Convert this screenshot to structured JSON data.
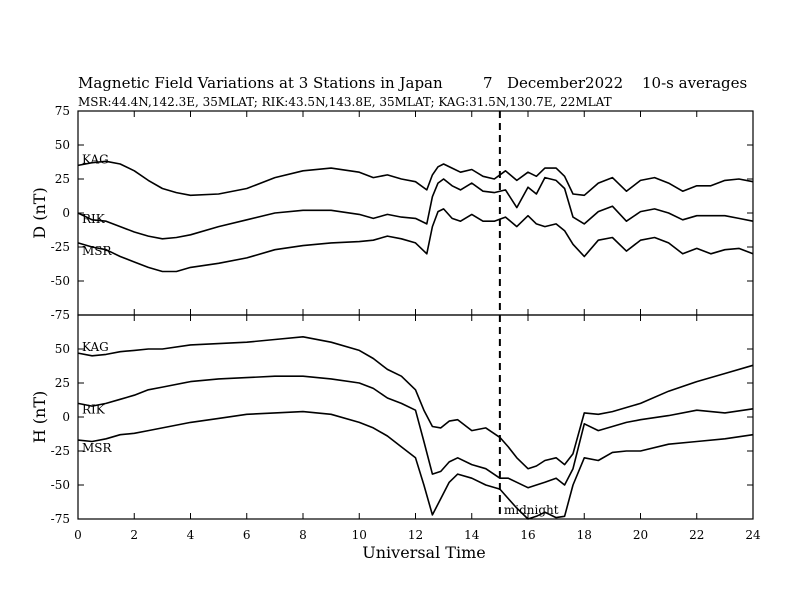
{
  "header": {
    "title": "Magnetic Field Variations at 3 Stations in Japan",
    "day": "7",
    "month_year": "December2022",
    "averaging": "10-s averages",
    "stations_line": "MSR:44.4N,142.3E, 35MLAT;  RIK:43.5N,143.8E, 35MLAT;  KAG:31.5N,130.7E, 22MLAT"
  },
  "chart_data": [
    {
      "type": "line",
      "panel": "top",
      "ylabel": "D (nT)",
      "xlabel": "",
      "xlim": [
        0,
        24
      ],
      "ylim": [
        -75,
        75
      ],
      "xticks": [
        0,
        2,
        4,
        6,
        8,
        10,
        12,
        14,
        16,
        18,
        20,
        22,
        24
      ],
      "yticks": [
        -75,
        -50,
        -25,
        0,
        25,
        50,
        75
      ],
      "marker_x": 15,
      "series": [
        {
          "name": "KAG",
          "x": [
            0,
            0.5,
            1,
            1.5,
            2,
            2.5,
            3,
            3.5,
            4,
            5,
            6,
            7,
            8,
            9,
            10,
            10.5,
            11,
            11.5,
            12,
            12.4,
            12.6,
            12.8,
            13,
            13.3,
            13.6,
            14,
            14.4,
            14.8,
            15.2,
            15.6,
            16,
            16.3,
            16.6,
            17,
            17.3,
            17.6,
            18,
            18.5,
            19,
            19.5,
            20,
            20.5,
            21,
            21.5,
            22,
            22.5,
            23,
            23.5,
            24
          ],
          "y": [
            35,
            37,
            38,
            36,
            31,
            24,
            18,
            15,
            13,
            14,
            18,
            26,
            31,
            33,
            30,
            26,
            28,
            25,
            23,
            17,
            28,
            34,
            36,
            33,
            30,
            32,
            27,
            25,
            31,
            24,
            30,
            27,
            33,
            33,
            27,
            14,
            13,
            22,
            26,
            16,
            24,
            26,
            22,
            16,
            20,
            20,
            24,
            25,
            23
          ]
        },
        {
          "name": "RIK",
          "x": [
            0,
            0.5,
            1,
            1.5,
            2,
            2.5,
            3,
            3.5,
            4,
            5,
            6,
            7,
            8,
            9,
            10,
            10.5,
            11,
            11.5,
            12,
            12.4,
            12.6,
            12.8,
            13,
            13.3,
            13.6,
            14,
            14.4,
            14.8,
            15.2,
            15.6,
            16,
            16.3,
            16.6,
            17,
            17.3,
            17.6,
            18,
            18.5,
            19,
            19.5,
            20,
            20.5,
            21,
            21.5,
            22,
            22.5,
            23,
            23.5,
            24
          ],
          "y": [
            0,
            -5,
            -6,
            -10,
            -14,
            -17,
            -19,
            -18,
            -16,
            -10,
            -5,
            0,
            2,
            2,
            -1,
            -4,
            -1,
            -3,
            -4,
            -8,
            12,
            22,
            25,
            20,
            17,
            22,
            16,
            15,
            17,
            4,
            19,
            14,
            26,
            24,
            18,
            -3,
            -8,
            1,
            5,
            -6,
            1,
            3,
            0,
            -5,
            -2,
            -2,
            -2,
            -4,
            -6
          ]
        },
        {
          "name": "MSR",
          "x": [
            0,
            0.5,
            1,
            1.5,
            2,
            2.5,
            3,
            3.5,
            4,
            5,
            6,
            7,
            8,
            9,
            10,
            10.5,
            11,
            11.5,
            12,
            12.4,
            12.6,
            12.8,
            13,
            13.3,
            13.6,
            14,
            14.4,
            14.8,
            15.2,
            15.6,
            16,
            16.3,
            16.6,
            17,
            17.3,
            17.6,
            18,
            18.5,
            19,
            19.5,
            20,
            20.5,
            21,
            21.5,
            22,
            22.5,
            23,
            23.5,
            24
          ],
          "y": [
            -22,
            -25,
            -27,
            -32,
            -36,
            -40,
            -43,
            -43,
            -40,
            -37,
            -33,
            -27,
            -24,
            -22,
            -21,
            -20,
            -17,
            -19,
            -22,
            -30,
            -10,
            1,
            3,
            -4,
            -6,
            -1,
            -6,
            -6,
            -3,
            -10,
            -2,
            -8,
            -10,
            -8,
            -13,
            -23,
            -32,
            -20,
            -18,
            -28,
            -20,
            -18,
            -22,
            -30,
            -26,
            -30,
            -27,
            -26,
            -30
          ]
        }
      ]
    },
    {
      "type": "line",
      "panel": "bottom",
      "ylabel": "H (nT)",
      "xlabel": "Universal Time",
      "xlim": [
        0,
        24
      ],
      "ylim": [
        -75,
        75
      ],
      "xticks": [
        0,
        2,
        4,
        6,
        8,
        10,
        12,
        14,
        16,
        18,
        20,
        22,
        24
      ],
      "yticks": [
        -75,
        -50,
        -25,
        0,
        25,
        50,
        75
      ],
      "marker_x": 15,
      "marker_label": "midnight",
      "series": [
        {
          "name": "KAG",
          "x": [
            0,
            0.5,
            1,
            1.5,
            2,
            2.5,
            3,
            4,
            5,
            6,
            7,
            8,
            9,
            10,
            10.5,
            11,
            11.5,
            12,
            12.3,
            12.6,
            12.9,
            13.2,
            13.5,
            14,
            14.5,
            15,
            15.3,
            15.6,
            16,
            16.3,
            16.6,
            17,
            17.3,
            17.6,
            18,
            18.5,
            19,
            19.5,
            20,
            21,
            22,
            23,
            24
          ],
          "y": [
            47,
            45,
            46,
            48,
            49,
            50,
            50,
            53,
            54,
            55,
            57,
            59,
            55,
            49,
            43,
            35,
            30,
            20,
            5,
            -7,
            -8,
            -3,
            -2,
            -10,
            -8,
            -15,
            -22,
            -30,
            -38,
            -36,
            -32,
            -30,
            -35,
            -27,
            3,
            2,
            4,
            7,
            10,
            19,
            26,
            32,
            38
          ]
        },
        {
          "name": "RIK",
          "x": [
            0,
            0.5,
            1,
            1.5,
            2,
            2.5,
            3,
            4,
            5,
            6,
            7,
            8,
            9,
            10,
            10.5,
            11,
            11.5,
            12,
            12.3,
            12.6,
            12.9,
            13.2,
            13.5,
            14,
            14.5,
            15,
            15.3,
            15.6,
            16,
            16.3,
            16.6,
            17,
            17.3,
            17.6,
            18,
            18.5,
            19,
            19.5,
            20,
            21,
            22,
            23,
            24
          ],
          "y": [
            10,
            8,
            10,
            13,
            16,
            20,
            22,
            26,
            28,
            29,
            30,
            30,
            28,
            25,
            21,
            14,
            10,
            5,
            -18,
            -42,
            -40,
            -33,
            -30,
            -35,
            -38,
            -45,
            -45,
            -48,
            -52,
            -50,
            -48,
            -45,
            -50,
            -38,
            -5,
            -10,
            -7,
            -4,
            -2,
            1,
            5,
            3,
            6
          ]
        },
        {
          "name": "MSR",
          "x": [
            0,
            0.5,
            1,
            1.5,
            2,
            2.5,
            3,
            4,
            5,
            6,
            7,
            8,
            9,
            10,
            10.5,
            11,
            11.5,
            12,
            12.3,
            12.6,
            12.9,
            13.2,
            13.5,
            14,
            14.5,
            15,
            15.3,
            15.6,
            16,
            16.3,
            16.6,
            17,
            17.3,
            17.6,
            18,
            18.5,
            19,
            19.5,
            20,
            21,
            22,
            23,
            24
          ],
          "y": [
            -17,
            -18,
            -16,
            -13,
            -12,
            -10,
            -8,
            -4,
            -1,
            2,
            3,
            4,
            2,
            -4,
            -8,
            -14,
            -22,
            -30,
            -50,
            -72,
            -60,
            -48,
            -42,
            -45,
            -50,
            -53,
            -60,
            -67,
            -75,
            -73,
            -70,
            -74,
            -73,
            -50,
            -30,
            -32,
            -26,
            -25,
            -25,
            -20,
            -18,
            -16,
            -13
          ]
        }
      ]
    }
  ]
}
